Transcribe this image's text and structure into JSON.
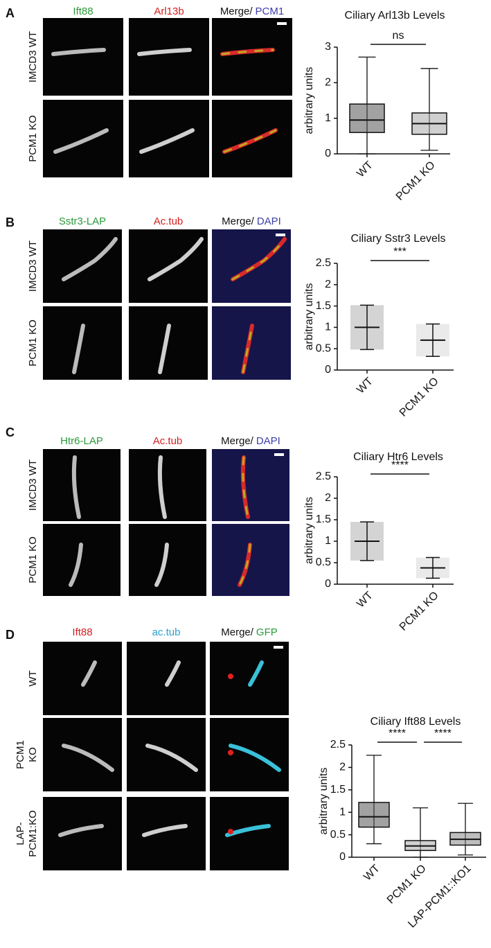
{
  "panels": [
    {
      "label": "A",
      "headers": [
        "Ift88",
        "Arl13b",
        "Merge/",
        "PCM1"
      ],
      "rows": [
        [
          "IMCD3 WT"
        ],
        [
          "PCM1 KO"
        ]
      ]
    },
    {
      "label": "B",
      "headers": [
        "Sstr3-LAP",
        "Ac.tub",
        "Merge/",
        "DAPI"
      ],
      "rows": [
        [
          "IMCD3 WT"
        ],
        [
          "PCM1 KO"
        ]
      ]
    },
    {
      "label": "C",
      "headers": [
        "Htr6-LAP",
        "Ac.tub",
        "Merge/",
        "DAPI"
      ],
      "rows": [
        [
          "IMCD3 WT"
        ],
        [
          "PCM1 KO"
        ]
      ]
    },
    {
      "label": "D",
      "headers": [
        "Ift88",
        "ac.tub",
        "Merge/",
        "GFP"
      ],
      "rows": [
        [
          "WT"
        ],
        [
          "PCM1",
          "KO"
        ],
        [
          "LAP-",
          "PCM1:KO"
        ]
      ]
    }
  ],
  "chart_data": [
    {
      "type": "box",
      "title": "Ciliary Arl13b Levels",
      "y_label": "arbitrary units",
      "categories": [
        "WT",
        "PCM1 KO"
      ],
      "ylim": [
        0,
        3
      ],
      "yticks": [
        0,
        1,
        2,
        3
      ],
      "annotations": [
        "ns"
      ],
      "boxes": [
        {
          "min": 0,
          "q1": 0.6,
          "median": 0.95,
          "q3": 1.4,
          "max": 2.72,
          "color": "#555555"
        },
        {
          "min": 0.1,
          "q1": 0.55,
          "median": 0.85,
          "q3": 1.15,
          "max": 2.4,
          "color": "#aaaaaa"
        }
      ]
    },
    {
      "type": "errorbar",
      "title": "Ciliary Sstr3 Levels",
      "y_label": "arbitrary units",
      "categories": [
        "WT",
        "PCM1 KO"
      ],
      "ylim": [
        0,
        2.5
      ],
      "yticks": [
        0,
        0.5,
        1,
        1.5,
        2,
        2.5
      ],
      "annotations": [
        "***"
      ],
      "means": [
        1.0,
        0.7
      ],
      "errors": [
        0.52,
        0.38
      ],
      "colors": [
        "#555555",
        "#aaaaaa"
      ]
    },
    {
      "type": "errorbar",
      "title": "Ciliary Htr6 Levels",
      "y_label": "arbitrary units",
      "categories": [
        "WT",
        "PCM1 KO"
      ],
      "ylim": [
        0,
        2.5
      ],
      "yticks": [
        0,
        0.5,
        1,
        1.5,
        2,
        2.5
      ],
      "annotations": [
        "****"
      ],
      "means": [
        1.0,
        0.38
      ],
      "errors": [
        0.45,
        0.24
      ],
      "colors": [
        "#555555",
        "#aaaaaa"
      ]
    },
    {
      "type": "box",
      "title": "Ciliary Ift88 Levels",
      "y_label": "arbitrary units",
      "categories": [
        "WT",
        "PCM1 KO",
        "LAP-PCM1::KO1"
      ],
      "ylim": [
        0,
        2.5
      ],
      "yticks": [
        0,
        0.5,
        1,
        1.5,
        2,
        2.5
      ],
      "annotations": [
        "****",
        "****"
      ],
      "boxes": [
        {
          "min": 0.3,
          "q1": 0.67,
          "median": 0.9,
          "q3": 1.22,
          "max": 2.27,
          "color": "#555555"
        },
        {
          "min": 0,
          "q1": 0.15,
          "median": 0.25,
          "q3": 0.37,
          "max": 1.1,
          "color": "#aaaaaa"
        },
        {
          "min": 0.05,
          "q1": 0.27,
          "median": 0.4,
          "q3": 0.55,
          "max": 1.2,
          "color": "#888888"
        }
      ]
    }
  ]
}
